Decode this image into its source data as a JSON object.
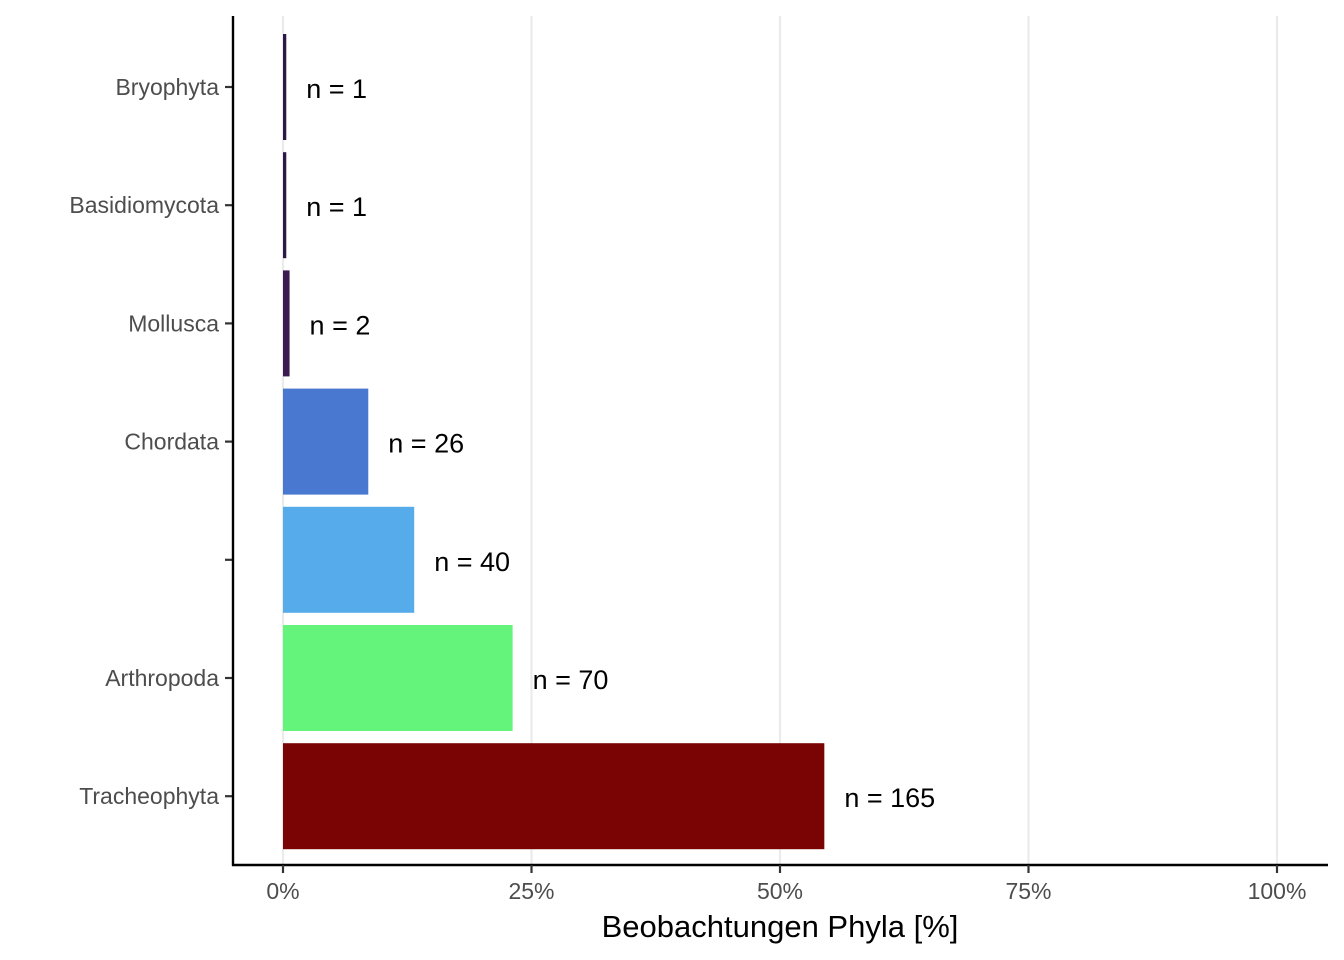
{
  "chart_data": {
    "type": "bar",
    "orientation": "horizontal",
    "categories": [
      "Bryophyta",
      "Basidiomycota",
      "Mollusca",
      "Chordata",
      "",
      "Arthropoda",
      "Tracheophyta"
    ],
    "values": [
      0.33,
      0.33,
      0.66,
      8.58,
      13.2,
      23.1,
      54.46
    ],
    "bar_labels": [
      "n = 1",
      "n = 1",
      "n = 2",
      "n = 26",
      "n = 40",
      "n = 70",
      "n = 165"
    ],
    "colors": [
      "#2d1745",
      "#2d1745",
      "#3b1a4f",
      "#4878cf",
      "#56acea",
      "#65f47b",
      "#7a0403"
    ],
    "xlabel": "Beobachtungen Phyla [%]",
    "ylabel": "",
    "xlim": [
      0,
      100
    ],
    "x_ticks": [
      0,
      25,
      50,
      75,
      100
    ],
    "x_tick_labels": [
      "0%",
      "25%",
      "50%",
      "75%",
      "100%"
    ],
    "grid": "vertical major",
    "legend": "none"
  }
}
